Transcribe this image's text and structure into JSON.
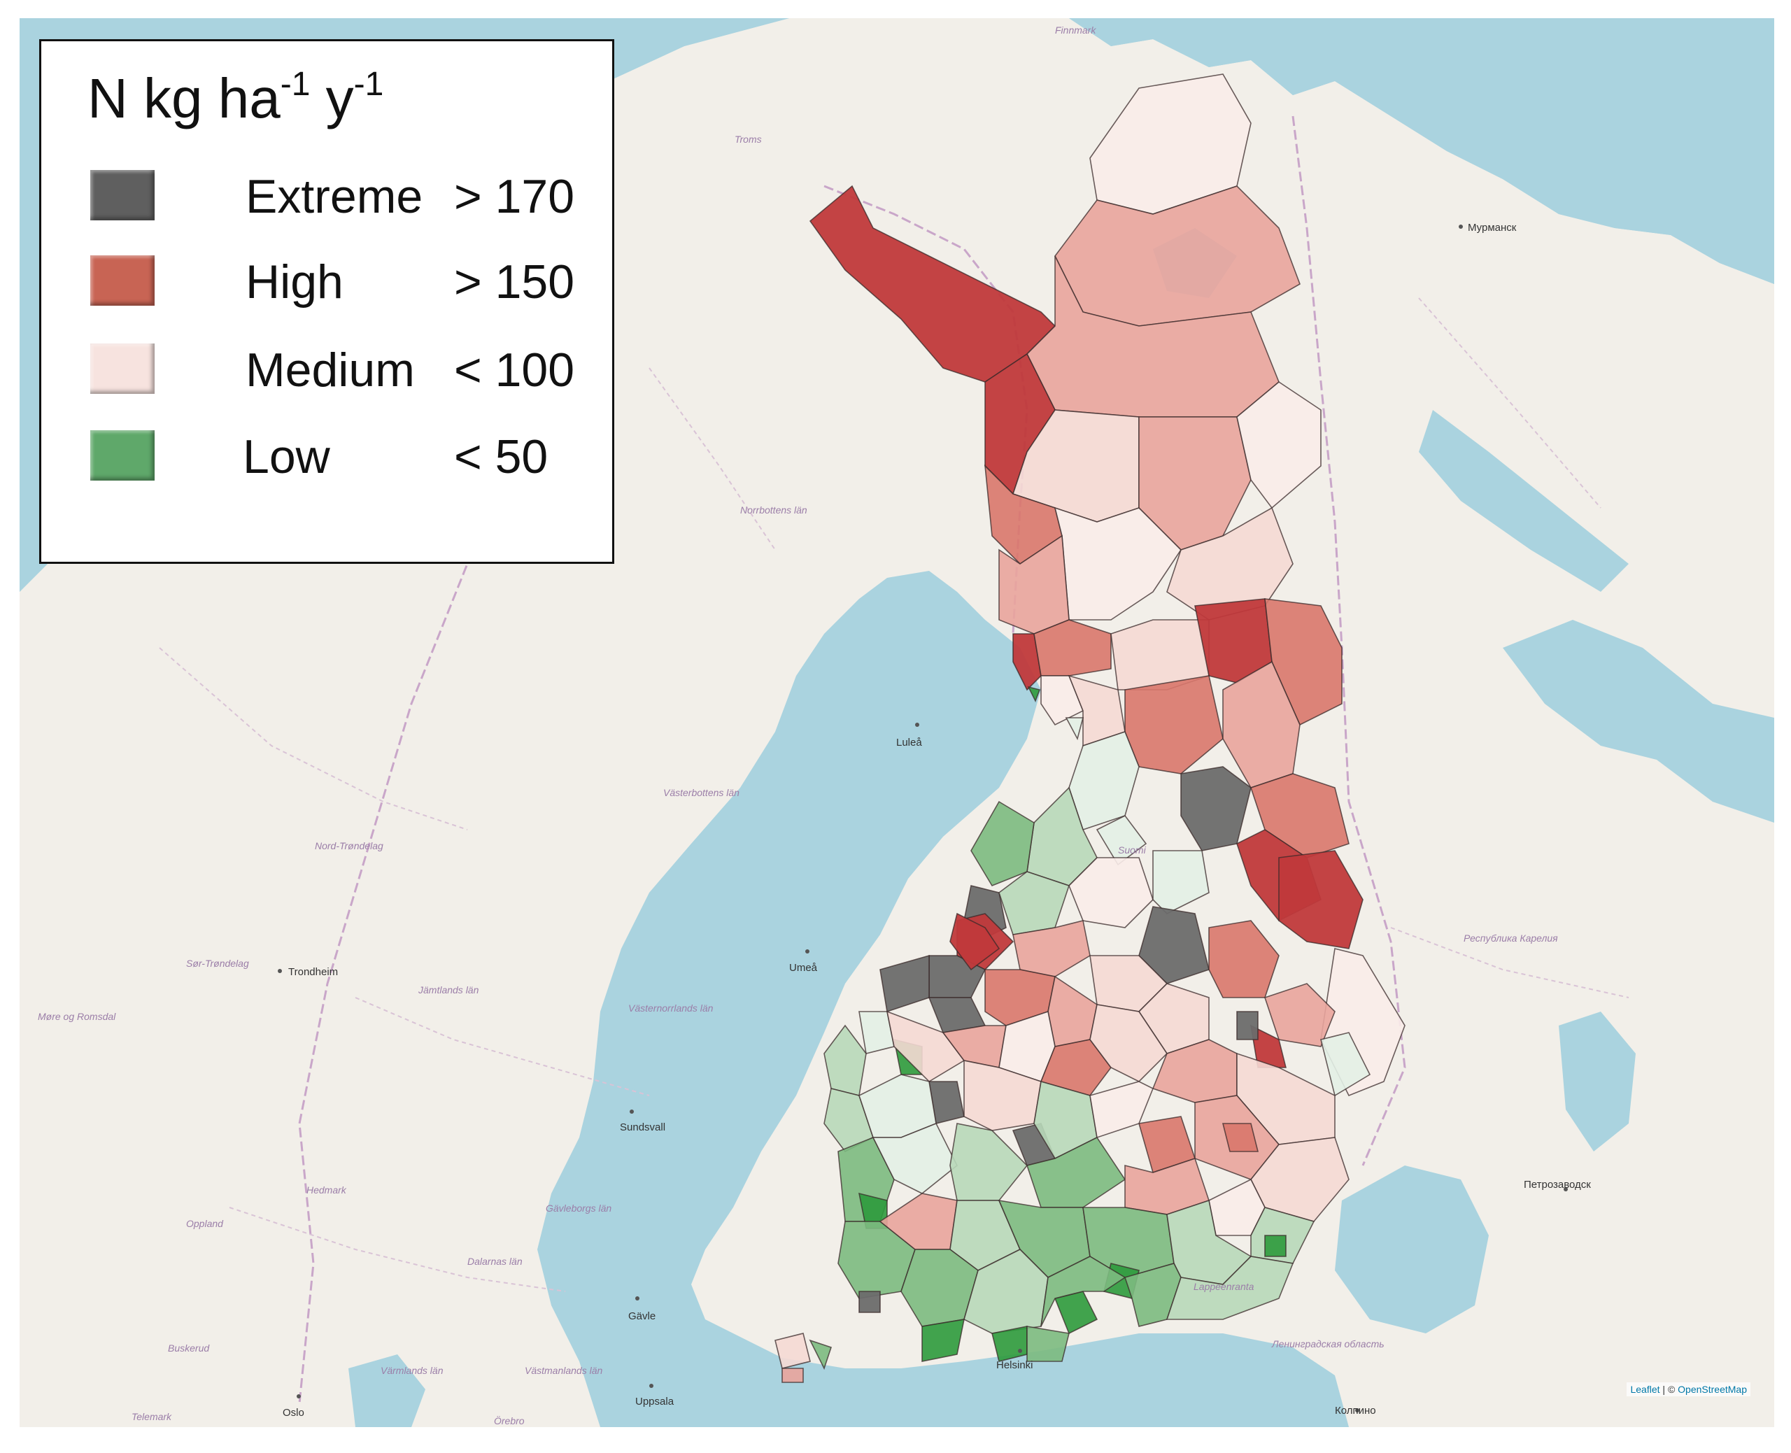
{
  "legend": {
    "title_base": "N kg ha",
    "title_exp1": "-1",
    "title_mid": " y",
    "title_exp2": "-1",
    "items": [
      {
        "label": "Extreme",
        "operator": "> 170",
        "color": "#5f5f5f"
      },
      {
        "label": "High",
        "operator": "> 150",
        "color": "#c86454"
      },
      {
        "label": "Medium",
        "operator": "< 100",
        "color": "#f7e3df"
      },
      {
        "label": "Low",
        "operator": "< 50",
        "color": "#5fa86a"
      }
    ]
  },
  "choropleth_colors": {
    "dark_red": "#c0393b",
    "red": "#d9776c",
    "pink": "#e9a49c",
    "light_pink": "#f5d9d4",
    "pale": "#f9ece9",
    "mint": "#e3efe6",
    "light_green": "#b8d8b9",
    "green": "#7cba7f",
    "dark_green": "#2e9a3c",
    "grey": "#6b6b6b"
  },
  "basemap_labels": {
    "cities": [
      "Luleå",
      "Umeå",
      "Trondheim",
      "Sundsvall",
      "Gävle",
      "Oslo",
      "Uppsala",
      "Helsinki",
      "Мурманск",
      "Петрозаводск",
      "Колпино"
    ],
    "regions": [
      "Finnmark",
      "Troms",
      "Norrbottens län",
      "Västerbottens län",
      "Nord-Trøndelag",
      "Sør-Trøndelag",
      "Jämtlands län",
      "Västernorrlands län",
      "Møre og Romsdal",
      "Hedmark",
      "Oppland",
      "Gävleborgs län",
      "Dalarnas län",
      "Buskerud",
      "Värmlands län",
      "Västmanlands län",
      "Telemark",
      "Örebro",
      "Республика Карелия",
      "Ленинградская область",
      "Suomi",
      "Lappeenranta"
    ]
  },
  "attribution": {
    "leaflet": "Leaflet",
    "separator": " | © ",
    "osm": "OpenStreetMap"
  }
}
